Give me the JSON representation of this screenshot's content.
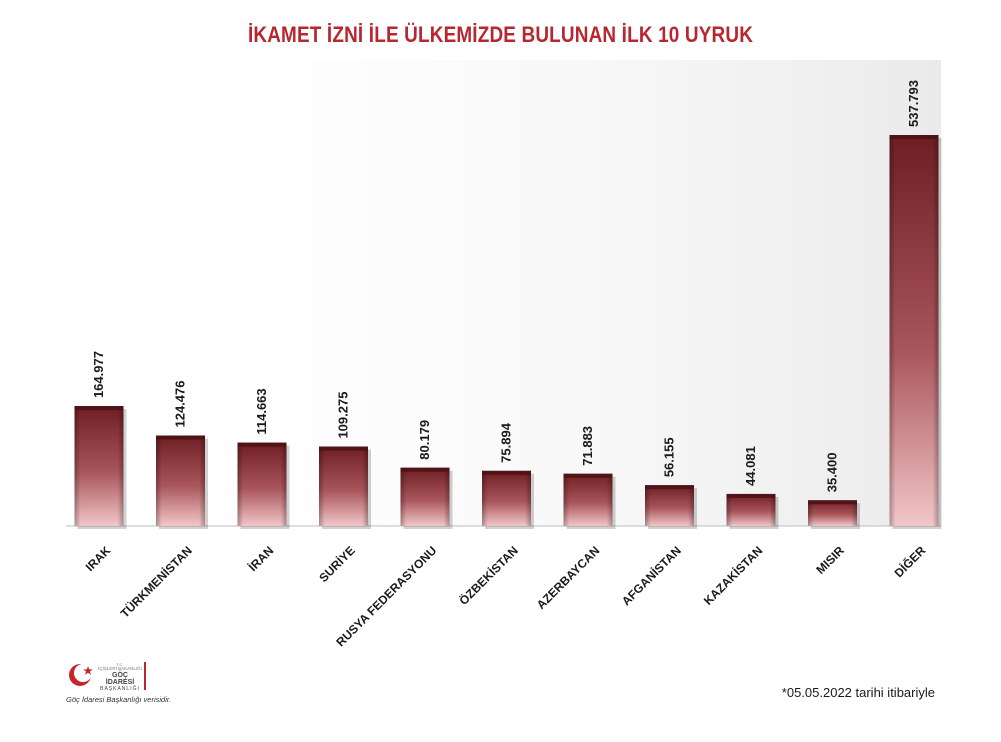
{
  "chart_data": {
    "type": "bar",
    "title": "İKAMET İZNİ İLE ÜLKEMİZDE BULUNAN İLK 10 UYRUK",
    "categories": [
      "IRAK",
      "TÜRKMENİSTAN",
      "İRAN",
      "SURİYE",
      "RUSYA FEDERASYONU",
      "ÖZBEKİSTAN",
      "AZERBAYCAN",
      "AFGANİSTAN",
      "KAZAKİSTAN",
      "MISIR",
      "DİĞER"
    ],
    "values": [
      164977,
      124476,
      114663,
      109275,
      80179,
      75894,
      71883,
      56155,
      44081,
      35400,
      537793
    ],
    "data_labels": [
      "164.977",
      "124.476",
      "114.663",
      "109.275",
      "80.179",
      "75.894",
      "71.883",
      "56.155",
      "44.081",
      "35.400",
      "537.793"
    ],
    "xlabel": "",
    "ylabel": "",
    "ylim": [
      0,
      560000
    ],
    "grid": false,
    "legend": "none",
    "colors": {
      "bar_top": "#6e1e22",
      "bar_mid": "#a8555b",
      "bar_bottom": "#f2c6c8",
      "title": "#b8272f"
    }
  },
  "footnote": "*05.05.2022 tarihi itibariyle",
  "logo": {
    "line1": "T.C.",
    "line2": "İÇİŞLERİ BAKANLIĞI",
    "line3": "GÖÇ İDARESİ",
    "line4": "BAŞKANLIĞI",
    "caption": "Göç İdaresi Başkanlığı verisidir."
  }
}
